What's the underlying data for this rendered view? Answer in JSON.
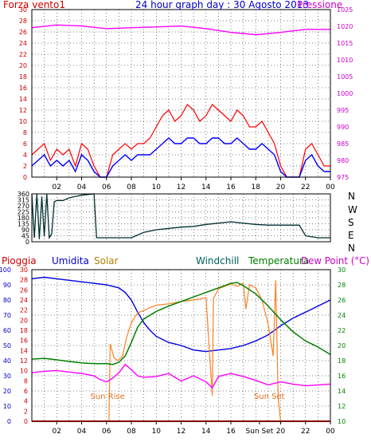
{
  "title": "24 hour graph day : 30 Agosto 2013",
  "colors": {
    "wind": "#ff0000",
    "wind_avg": "#0000ff",
    "pressure": "#ff00ff",
    "direction": "#003030",
    "humidity": "#0000dd",
    "solar": "#ff8020",
    "temperature": "#008000",
    "windchill": "#006060",
    "dewpoint": "#ff00ff",
    "rain": "#ff0000",
    "grid": "#000000"
  },
  "chart_data": [
    {
      "type": "line",
      "panel": "wind-pressure",
      "title": "24 hour graph day : 30 Agosto 2013",
      "left_label": "Forza vento1",
      "right_label": "Pressione",
      "x_ticks": [
        "02",
        "04",
        "06",
        "08",
        "10",
        "12",
        "14",
        "16",
        "18",
        "20",
        "22",
        "00"
      ],
      "left_ticks": [
        "0",
        "2",
        "4",
        "6",
        "8",
        "10",
        "12",
        "14",
        "16",
        "18",
        "20",
        "22",
        "24",
        "26",
        "28",
        "30"
      ],
      "right_ticks": [
        "975",
        "980",
        "985",
        "990",
        "995",
        "1000",
        "1005",
        "1010",
        "1015",
        "1020",
        "1025"
      ],
      "left_range": [
        0,
        30
      ],
      "right_range": [
        975,
        1025
      ],
      "series": [
        {
          "key": "gust",
          "axis": "left",
          "x": [
            0,
            0.5,
            1,
            1.5,
            2,
            2.5,
            3,
            3.5,
            4,
            4.5,
            5,
            5.5,
            6,
            6.5,
            7,
            7.5,
            8,
            8.5,
            9,
            9.5,
            10,
            10.5,
            11,
            11.5,
            12,
            12.5,
            13,
            13.5,
            14,
            14.5,
            15,
            15.5,
            16,
            16.5,
            17,
            17.5,
            18,
            18.5,
            19,
            19.5,
            20,
            20.5,
            21,
            21.5,
            22,
            22.5,
            23,
            23.5,
            24
          ],
          "values": [
            4,
            5,
            6,
            3,
            5,
            4,
            5,
            2,
            6,
            5,
            2,
            0,
            0,
            4,
            5,
            6,
            5,
            6,
            6,
            7,
            9,
            11,
            12,
            10,
            11,
            13,
            12,
            10,
            11,
            13,
            12,
            11,
            10,
            12,
            11,
            9,
            9,
            10,
            8,
            6,
            2,
            0,
            0,
            0,
            5,
            6,
            4,
            2,
            2
          ]
        },
        {
          "key": "average",
          "axis": "left",
          "x": [
            0,
            0.5,
            1,
            1.5,
            2,
            2.5,
            3,
            3.5,
            4,
            4.5,
            5,
            5.5,
            6,
            6.5,
            7,
            7.5,
            8,
            8.5,
            9,
            9.5,
            10,
            10.5,
            11,
            11.5,
            12,
            12.5,
            13,
            13.5,
            14,
            14.5,
            15,
            15.5,
            16,
            16.5,
            17,
            17.5,
            18,
            18.5,
            19,
            19.5,
            20,
            20.5,
            21,
            21.5,
            22,
            22.5,
            23,
            23.5,
            24
          ],
          "values": [
            2,
            3,
            4,
            2,
            3,
            2,
            3,
            1,
            4,
            3,
            1,
            0,
            0,
            2,
            3,
            4,
            3,
            4,
            4,
            4,
            5,
            6,
            7,
            6,
            6,
            7,
            7,
            6,
            6,
            7,
            7,
            6,
            6,
            7,
            6,
            5,
            5,
            6,
            5,
            4,
            1,
            0,
            0,
            0,
            3,
            4,
            2,
            1,
            1
          ]
        },
        {
          "key": "pressure",
          "axis": "right",
          "x": [
            0,
            2,
            4,
            6,
            8,
            10,
            12,
            14,
            16,
            18,
            19,
            20,
            22,
            24
          ],
          "values": [
            1019.6,
            1020.4,
            1020.1,
            1019.3,
            1019.6,
            1019.8,
            1020.1,
            1019.3,
            1018.2,
            1017.5,
            1017.8,
            1018.2,
            1019.1,
            1019.1
          ]
        }
      ]
    },
    {
      "type": "line",
      "panel": "wind-direction",
      "left_ticks": [
        "0",
        "45",
        "90",
        "135",
        "180",
        "225",
        "270",
        "315",
        "360"
      ],
      "right_ticks": [
        "N",
        "W",
        "S",
        "E",
        "N"
      ],
      "y_range": [
        0,
        360
      ],
      "series": [
        {
          "key": "direction",
          "x": [
            0,
            0.2,
            0.4,
            0.6,
            0.8,
            1.0,
            1.2,
            1.4,
            1.6,
            1.8,
            2.0,
            2.5,
            3.0,
            3.5,
            4.0,
            4.5,
            5.0,
            5.2,
            6.0,
            7,
            8,
            9,
            10,
            11,
            12,
            13,
            14,
            15,
            16,
            17,
            18,
            19,
            20,
            21,
            21.5,
            22,
            23,
            24
          ],
          "values": [
            360,
            30,
            360,
            20,
            340,
            40,
            360,
            30,
            60,
            300,
            310,
            310,
            330,
            340,
            350,
            355,
            360,
            30,
            30,
            30,
            30,
            70,
            90,
            100,
            110,
            115,
            130,
            140,
            150,
            140,
            130,
            125,
            125,
            125,
            125,
            45,
            30,
            30
          ]
        }
      ]
    },
    {
      "type": "line",
      "panel": "weather",
      "legend": [
        "Pioggia",
        "Umidita",
        "Solar",
        "Windchill",
        "Temperatura",
        "Dew Point (°C)"
      ],
      "humidity_ticks": [
        "0",
        "10",
        "20",
        "30",
        "40",
        "50",
        "60",
        "70",
        "80",
        "90",
        "100"
      ],
      "rain_ticks": [
        "0",
        "2",
        "4",
        "6",
        "8",
        "10",
        "12",
        "14",
        "16",
        "18",
        "20",
        "22",
        "24",
        "26",
        "28",
        "30"
      ],
      "temp_ticks": [
        "10",
        "12",
        "14",
        "16",
        "18",
        "20",
        "22",
        "24",
        "26",
        "28",
        "30"
      ],
      "x_ticks": [
        "02",
        "04",
        "06",
        "08",
        "10",
        "12",
        "14",
        "16",
        "Sun Set",
        "20",
        "22",
        "00"
      ],
      "x_tick_hours": [
        2,
        4,
        6,
        8,
        10,
        12,
        14,
        16,
        18.3,
        20,
        22,
        24
      ],
      "temp_range": [
        10,
        30
      ],
      "humidity_range": [
        0,
        100
      ],
      "rain_range": [
        0,
        30
      ],
      "annotations": [
        {
          "label": "Sun Rise",
          "x": 6.6
        },
        {
          "label": "Sun Set",
          "x": 19.6
        }
      ],
      "series": [
        {
          "key": "humidity",
          "axis": "humidity",
          "x": [
            0,
            1,
            2,
            3,
            4,
            5,
            6,
            7,
            7.5,
            8,
            8.5,
            9,
            9.5,
            10,
            11,
            12,
            13,
            14,
            15,
            16,
            17,
            18,
            19,
            20,
            21,
            22,
            23,
            24
          ],
          "values": [
            94,
            95,
            94,
            93,
            92,
            91,
            90,
            88,
            85,
            80,
            72,
            65,
            60,
            56,
            52,
            50,
            47,
            46,
            47,
            48,
            50,
            53,
            57,
            63,
            68,
            72,
            76,
            80
          ]
        },
        {
          "key": "solar",
          "axis": "temp",
          "x": [
            0,
            6.2,
            6.3,
            6.6,
            6.9,
            7.3,
            7.6,
            8.0,
            8.5,
            9.0,
            9.5,
            10,
            11,
            12,
            13,
            14,
            14.5,
            14.6,
            15,
            16,
            16.5,
            17,
            17.2,
            17.5,
            18,
            18.5,
            19,
            19.4,
            19.6,
            19.8,
            20,
            24
          ],
          "values": [
            10,
            10,
            20.2,
            18.4,
            18.0,
            18.6,
            21,
            23,
            24.3,
            24.6,
            25.0,
            25.3,
            25.5,
            25.8,
            26.0,
            26.3,
            13.4,
            26.2,
            27.5,
            28.1,
            27.8,
            28.2,
            24.8,
            28,
            27.6,
            26.0,
            22.8,
            18.6,
            28.6,
            13.0,
            10,
            10
          ]
        },
        {
          "key": "temperature",
          "axis": "temp",
          "x": [
            0,
            1,
            2,
            3,
            4,
            5,
            6,
            6.5,
            7,
            7.5,
            8,
            8.5,
            9,
            10,
            11,
            12,
            13,
            14,
            15,
            16,
            16.5,
            17,
            18,
            19,
            20,
            21,
            22,
            23,
            24
          ],
          "values": [
            18.2,
            18.3,
            18.1,
            17.9,
            17.7,
            17.6,
            17.6,
            17.5,
            17.8,
            18.6,
            20.4,
            22.4,
            23.5,
            24.5,
            25.2,
            25.8,
            26.4,
            27.0,
            27.6,
            28.2,
            28.3,
            27.9,
            26.8,
            25.2,
            23.4,
            21.8,
            20.6,
            19.8,
            18.8
          ]
        },
        {
          "key": "dewpoint",
          "axis": "temp",
          "x": [
            0,
            1,
            2,
            3,
            4,
            5,
            5.5,
            6,
            6.5,
            7,
            7.5,
            8,
            8.5,
            9,
            10,
            11,
            12,
            13,
            14,
            14.5,
            15,
            16,
            17,
            18,
            19,
            20,
            21,
            22,
            23,
            24
          ],
          "values": [
            16.4,
            16.6,
            16.7,
            16.5,
            16.3,
            16.0,
            15.5,
            15.2,
            15.7,
            16.4,
            17.5,
            16.8,
            16.0,
            15.8,
            15.9,
            16.3,
            15.3,
            16.0,
            15.2,
            14.4,
            15.9,
            16.3,
            15.9,
            15.4,
            14.8,
            15.2,
            14.9,
            14.7,
            14.8,
            14.9
          ]
        },
        {
          "key": "rain",
          "axis": "rain",
          "x": [
            0,
            24
          ],
          "values": [
            0,
            0
          ]
        }
      ]
    }
  ]
}
